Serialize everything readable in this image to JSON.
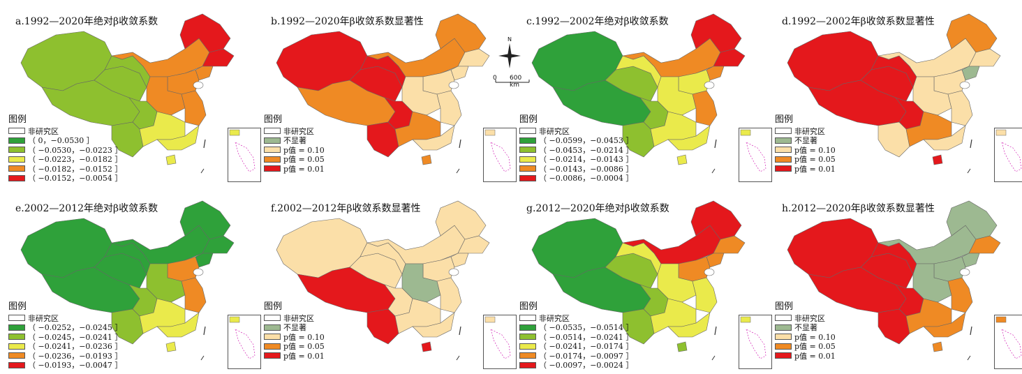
{
  "colors": {
    "dark_green": "#2fa13a",
    "light_green": "#8ec02f",
    "yellow": "#eaea4b",
    "orange": "#ef8a24",
    "red": "#e4181c",
    "gray_green": "#9db991",
    "beige": "#fbdfa8",
    "ocean_blue": "#4c8fcf",
    "outline": "#555555"
  },
  "compass": {
    "north": "N",
    "scale_start": "0",
    "scale_end": "600 km"
  },
  "panels": [
    {
      "title": "a.1992—2020年绝对β收敛系数",
      "legend_title": "图例",
      "legend_items": [
        {
          "label": "非研究区",
          "color": "#ffffff"
        },
        {
          "label": "（ 0，−0.0530 ］",
          "color": "#2fa13a"
        },
        {
          "label": "（ −0.0530，−0.0223 ］",
          "color": "#8ec02f"
        },
        {
          "label": "（ −0.0223，−0.0182 ］",
          "color": "#eaea4b"
        },
        {
          "label": "（ −0.0182，−0.0152 ］",
          "color": "#ef8a24"
        },
        {
          "label": "（ −0.0152，−0.0054 ］",
          "color": "#e4181c"
        }
      ]
    },
    {
      "title": "b.1992—2020年β收敛系数显著性",
      "legend_title": "图例",
      "legend_items": [
        {
          "label": "非研究区",
          "color": "#ffffff"
        },
        {
          "label": "不显著",
          "color": "#9db991"
        },
        {
          "label": "p值 = 0.10",
          "color": "#fbdfa8"
        },
        {
          "label": "p值 = 0.05",
          "color": "#ef8a24"
        },
        {
          "label": "p值 = 0.01",
          "color": "#e4181c"
        }
      ]
    },
    {
      "title": "c.1992—2002年绝对β收敛系数",
      "legend_title": "图例",
      "legend_items": [
        {
          "label": "非研究区",
          "color": "#ffffff"
        },
        {
          "label": "（ −0.0599，−0.0453 ］",
          "color": "#2fa13a"
        },
        {
          "label": "（ −0.0453，−0.0214 ］",
          "color": "#8ec02f"
        },
        {
          "label": "（ −0.0214，−0.0143 ］",
          "color": "#eaea4b"
        },
        {
          "label": "（ −0.0143，−0.0086 ］",
          "color": "#ef8a24"
        },
        {
          "label": "（ −0.0086，−0.0004 ］",
          "color": "#e4181c"
        }
      ]
    },
    {
      "title": "d.1992—2002年β收敛系数显著性",
      "legend_title": "图例",
      "legend_items": [
        {
          "label": "非研究区",
          "color": "#ffffff"
        },
        {
          "label": "不显著",
          "color": "#9db991"
        },
        {
          "label": "p值 = 0.10",
          "color": "#fbdfa8"
        },
        {
          "label": "p值 = 0.05",
          "color": "#ef8a24"
        },
        {
          "label": "p值 = 0.01",
          "color": "#e4181c"
        }
      ]
    },
    {
      "title": "e.2002—2012年绝对β收敛系数",
      "legend_title": "图例",
      "legend_items": [
        {
          "label": "非研究区",
          "color": "#ffffff"
        },
        {
          "label": "（ −0.0252，−0.0245 ］",
          "color": "#2fa13a"
        },
        {
          "label": "（ −0.0245，−0.0241 ］",
          "color": "#8ec02f"
        },
        {
          "label": "（ −0.0241，−0.0236 ］",
          "color": "#eaea4b"
        },
        {
          "label": "（ −0.0236，−0.0193 ］",
          "color": "#ef8a24"
        },
        {
          "label": "（ −0.0193，−0.0047 ］",
          "color": "#e4181c"
        }
      ]
    },
    {
      "title": "f.2002—2012年β收敛系数显著性",
      "legend_title": "图例",
      "legend_items": [
        {
          "label": "非研究区",
          "color": "#ffffff"
        },
        {
          "label": "不显著",
          "color": "#9db991"
        },
        {
          "label": "p值 = 0.10",
          "color": "#fbdfa8"
        },
        {
          "label": "p值 = 0.05",
          "color": "#ef8a24"
        },
        {
          "label": "p值 = 0.01",
          "color": "#e4181c"
        }
      ]
    },
    {
      "title": "g.2012—2020年绝对β收敛系数",
      "legend_title": "图例",
      "legend_items": [
        {
          "label": "非研究区",
          "color": "#ffffff"
        },
        {
          "label": "（ −0.0535，−0.0514 ］",
          "color": "#2fa13a"
        },
        {
          "label": "（ −0.0514，−0.0241 ］",
          "color": "#8ec02f"
        },
        {
          "label": "（ −0.0241，−0.0174 ］",
          "color": "#eaea4b"
        },
        {
          "label": "（ −0.0174，−0.0097 ］",
          "color": "#ef8a24"
        },
        {
          "label": "（ −0.0097，−0.0024 ］",
          "color": "#e4181c"
        }
      ]
    },
    {
      "title": "h.2012—2020年β收敛系数显著性",
      "legend_title": "图例",
      "legend_items": [
        {
          "label": "非研究区",
          "color": "#ffffff"
        },
        {
          "label": "不显著",
          "color": "#9db991"
        },
        {
          "label": "p值 = 0.10",
          "color": "#fbdfa8"
        },
        {
          "label": "p值 = 0.05",
          "color": "#ef8a24"
        },
        {
          "label": "p值 = 0.01",
          "color": "#e4181c"
        }
      ]
    }
  ]
}
